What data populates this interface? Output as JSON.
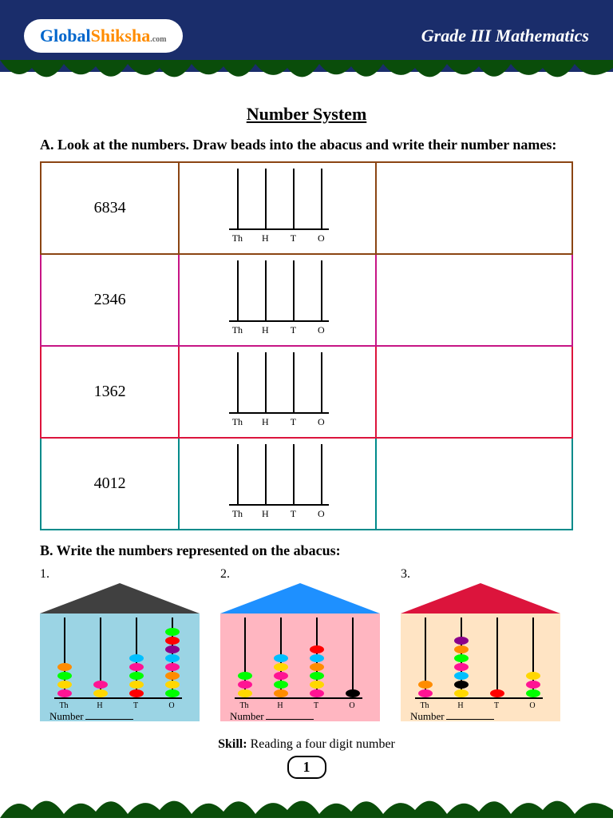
{
  "header": {
    "logo_global": "Gl",
    "logo_o": "o",
    "logo_bal": "bal",
    "logo_shiksha": "Shiksha",
    "logo_com": ".com",
    "grade_title": "Grade III Mathematics"
  },
  "page_title": "Number System",
  "section_a": {
    "title": "A. Look at the numbers. Draw beads into the abacus and write their number names:",
    "rows": [
      {
        "number": "6834",
        "border_color": "#8B4513"
      },
      {
        "number": "2346",
        "border_color": "#C71585"
      },
      {
        "number": "1362",
        "border_color": "#DC143C"
      },
      {
        "number": "4012",
        "border_color": "#008B8B"
      }
    ],
    "rod_labels": [
      "Th",
      "H",
      "T",
      "O"
    ]
  },
  "section_b": {
    "title": "B. Write the numbers represented on the abacus:",
    "houses": [
      {
        "num": "1.",
        "roof_color": "#404040",
        "body_color": "#9bd4e4",
        "beads": {
          "rod1": [
            "#ff1493",
            "#ffd700",
            "#00ff00",
            "#ff8c00"
          ],
          "rod2": [
            "#ffd700",
            "#ff1493"
          ],
          "rod3": [
            "#ff0000",
            "#ffd700",
            "#00ff00",
            "#ff1493",
            "#00bfff"
          ],
          "rod4": [
            "#00ff00",
            "#ffd700",
            "#ff8c00",
            "#ff1493",
            "#00bfff",
            "#8b008b",
            "#ff0000",
            "#00ff00"
          ]
        },
        "number_label": "Number"
      },
      {
        "num": "2.",
        "roof_color": "#1e90ff",
        "body_color": "#ffb6c1",
        "beads": {
          "rod1": [
            "#ffd700",
            "#ff1493",
            "#00ff00"
          ],
          "rod2": [
            "#ff8c00",
            "#00ff00",
            "#ff1493",
            "#ffd700",
            "#00bfff"
          ],
          "rod3": [
            "#ff1493",
            "#ffd700",
            "#00ff00",
            "#ff8c00",
            "#00bfff",
            "#ff0000"
          ],
          "rod4": [
            "#000000"
          ]
        },
        "number_label": "Number"
      },
      {
        "num": "3.",
        "roof_color": "#dc143c",
        "body_color": "#ffe4c4",
        "beads": {
          "rod1": [
            "#ff1493",
            "#ff8c00"
          ],
          "rod2": [
            "#ffd700",
            "#000000",
            "#00bfff",
            "#ff1493",
            "#00ff00",
            "#ff8c00",
            "#8b008b"
          ],
          "rod3": [
            "#ff0000"
          ],
          "rod4": [
            "#00ff00",
            "#ff1493",
            "#ffd700"
          ]
        },
        "number_label": "Number"
      }
    ]
  },
  "skill": {
    "label": "Skill:",
    "text": " Reading a four digit number"
  },
  "page_number": "1",
  "colors": {
    "header_bg": "#1a2d6b",
    "grass": "#0a4d0a"
  }
}
